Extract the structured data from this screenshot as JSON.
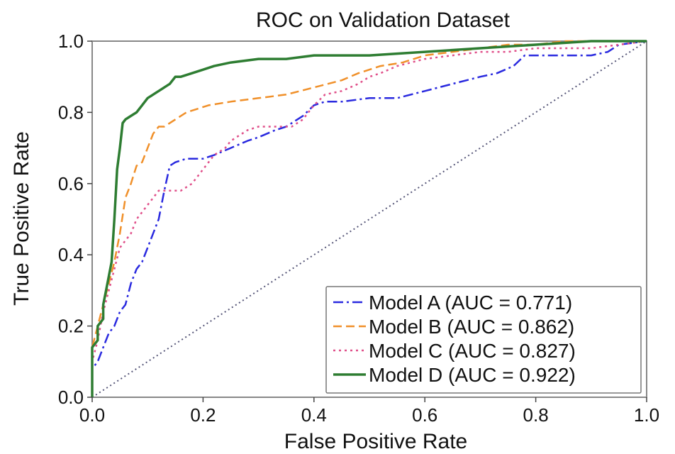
{
  "chart_data": {
    "type": "line",
    "title": "ROC on Validation Dataset",
    "xlabel": "False Positive Rate",
    "ylabel": "True Positive Rate",
    "xlim": [
      0.0,
      1.0
    ],
    "ylim": [
      0.0,
      1.0
    ],
    "x_ticks": [
      "0.0",
      "0.2",
      "0.4",
      "0.6",
      "0.8",
      "1.0"
    ],
    "y_ticks": [
      "0.0",
      "0.2",
      "0.4",
      "0.6",
      "0.8",
      "1.0"
    ],
    "grid": false,
    "legend_position": "bottom-right",
    "diagonal": {
      "color": "#555577",
      "style": "dotted",
      "x": [
        0,
        1
      ],
      "y": [
        0,
        1
      ]
    },
    "series": [
      {
        "name": "Model A (AUC = 0.771)",
        "color": "#2a2adf",
        "style": "dashdot",
        "x": [
          0.0,
          0.0,
          0.01,
          0.02,
          0.03,
          0.04,
          0.05,
          0.06,
          0.07,
          0.08,
          0.09,
          0.1,
          0.11,
          0.12,
          0.13,
          0.14,
          0.15,
          0.17,
          0.2,
          0.22,
          0.25,
          0.28,
          0.3,
          0.33,
          0.35,
          0.38,
          0.4,
          0.42,
          0.45,
          0.5,
          0.55,
          0.6,
          0.65,
          0.7,
          0.73,
          0.76,
          0.78,
          0.8,
          0.85,
          0.9,
          0.93,
          0.95,
          1.0
        ],
        "y": [
          0.0,
          0.08,
          0.1,
          0.14,
          0.18,
          0.2,
          0.24,
          0.26,
          0.32,
          0.36,
          0.38,
          0.42,
          0.46,
          0.5,
          0.58,
          0.65,
          0.66,
          0.67,
          0.67,
          0.68,
          0.7,
          0.72,
          0.73,
          0.75,
          0.76,
          0.79,
          0.82,
          0.83,
          0.83,
          0.84,
          0.84,
          0.86,
          0.88,
          0.9,
          0.91,
          0.93,
          0.96,
          0.96,
          0.96,
          0.96,
          0.97,
          0.99,
          1.0
        ]
      },
      {
        "name": "Model B (AUC = 0.862)",
        "color": "#f0902a",
        "style": "dashed",
        "x": [
          0.0,
          0.0,
          0.01,
          0.02,
          0.03,
          0.04,
          0.05,
          0.06,
          0.07,
          0.08,
          0.09,
          0.1,
          0.11,
          0.12,
          0.13,
          0.15,
          0.17,
          0.19,
          0.21,
          0.25,
          0.3,
          0.35,
          0.4,
          0.45,
          0.48,
          0.52,
          0.56,
          0.6,
          0.65,
          0.7,
          0.75,
          0.8,
          0.85,
          0.9,
          1.0
        ],
        "y": [
          0.0,
          0.14,
          0.2,
          0.26,
          0.32,
          0.38,
          0.46,
          0.56,
          0.6,
          0.65,
          0.66,
          0.7,
          0.74,
          0.76,
          0.76,
          0.78,
          0.8,
          0.81,
          0.82,
          0.83,
          0.84,
          0.85,
          0.87,
          0.89,
          0.91,
          0.93,
          0.94,
          0.96,
          0.97,
          0.98,
          0.99,
          0.99,
          1.0,
          1.0,
          1.0
        ]
      },
      {
        "name": "Model C (AUC = 0.827)",
        "color": "#e0508a",
        "style": "dotted",
        "x": [
          0.0,
          0.0,
          0.01,
          0.02,
          0.03,
          0.04,
          0.05,
          0.06,
          0.07,
          0.08,
          0.09,
          0.1,
          0.11,
          0.12,
          0.13,
          0.14,
          0.16,
          0.18,
          0.2,
          0.22,
          0.24,
          0.25,
          0.28,
          0.3,
          0.33,
          0.36,
          0.38,
          0.4,
          0.42,
          0.45,
          0.48,
          0.5,
          0.52,
          0.55,
          0.6,
          0.65,
          0.7,
          0.75,
          0.8,
          0.85,
          0.9,
          0.95,
          1.0
        ],
        "y": [
          0.0,
          0.1,
          0.16,
          0.24,
          0.3,
          0.36,
          0.42,
          0.44,
          0.46,
          0.5,
          0.52,
          0.54,
          0.56,
          0.58,
          0.58,
          0.58,
          0.58,
          0.6,
          0.64,
          0.68,
          0.7,
          0.72,
          0.75,
          0.76,
          0.76,
          0.76,
          0.78,
          0.82,
          0.85,
          0.86,
          0.88,
          0.9,
          0.91,
          0.93,
          0.95,
          0.96,
          0.97,
          0.97,
          0.98,
          0.98,
          0.98,
          0.99,
          1.0
        ]
      },
      {
        "name": "Model D (AUC = 0.922)",
        "color": "#2e7d32",
        "style": "solid",
        "x": [
          0.0,
          0.0,
          0.01,
          0.01,
          0.02,
          0.02,
          0.025,
          0.03,
          0.035,
          0.04,
          0.045,
          0.05,
          0.055,
          0.06,
          0.07,
          0.08,
          0.09,
          0.1,
          0.11,
          0.12,
          0.14,
          0.15,
          0.16,
          0.18,
          0.2,
          0.22,
          0.25,
          0.3,
          0.35,
          0.4,
          0.5,
          0.6,
          0.7,
          0.8,
          0.9,
          1.0
        ],
        "y": [
          0.0,
          0.14,
          0.16,
          0.2,
          0.22,
          0.26,
          0.3,
          0.34,
          0.38,
          0.5,
          0.64,
          0.7,
          0.77,
          0.78,
          0.79,
          0.8,
          0.82,
          0.84,
          0.85,
          0.86,
          0.88,
          0.9,
          0.9,
          0.91,
          0.92,
          0.93,
          0.94,
          0.95,
          0.95,
          0.96,
          0.96,
          0.97,
          0.98,
          0.99,
          1.0,
          1.0
        ]
      }
    ]
  }
}
